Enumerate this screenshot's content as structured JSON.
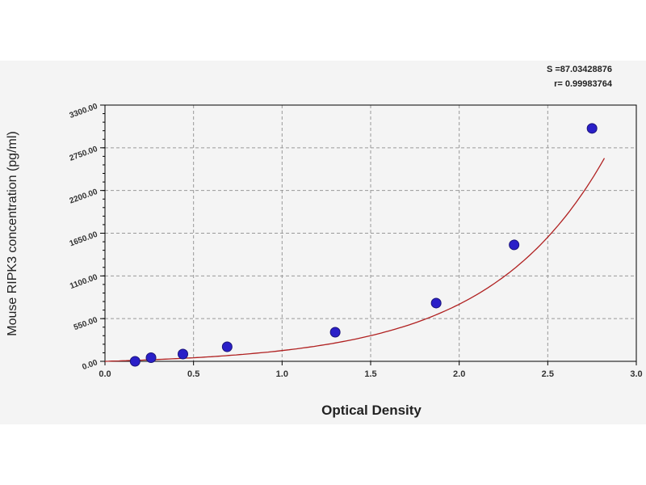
{
  "chart_data": {
    "type": "scatter",
    "xlabel": "Optical Density",
    "ylabel": "Mouse RIPK3 concentration (pg/ml)",
    "xlim": [
      0,
      3.0
    ],
    "ylim": [
      0,
      3300
    ],
    "x_ticks": [
      "0.0",
      "0.5",
      "1.0",
      "1.5",
      "2.0",
      "2.5",
      "3.0"
    ],
    "y_ticks": [
      "0.00",
      "550.00",
      "1100.00",
      "1650.00",
      "2200.00",
      "2750.00",
      "3300.00"
    ],
    "grid": true,
    "stats": {
      "s": "S =87.03428876",
      "r": "r= 0.99983764"
    },
    "points": [
      {
        "x": 0.17,
        "y": 0
      },
      {
        "x": 0.26,
        "y": 46.88
      },
      {
        "x": 0.44,
        "y": 93.75
      },
      {
        "x": 0.69,
        "y": 187.5
      },
      {
        "x": 1.3,
        "y": 375
      },
      {
        "x": 1.87,
        "y": 750
      },
      {
        "x": 2.31,
        "y": 1500
      },
      {
        "x": 2.75,
        "y": 3000
      }
    ],
    "colors": {
      "points": "#2a1fc8",
      "curve": "#b02020",
      "grid": "#999999"
    }
  }
}
